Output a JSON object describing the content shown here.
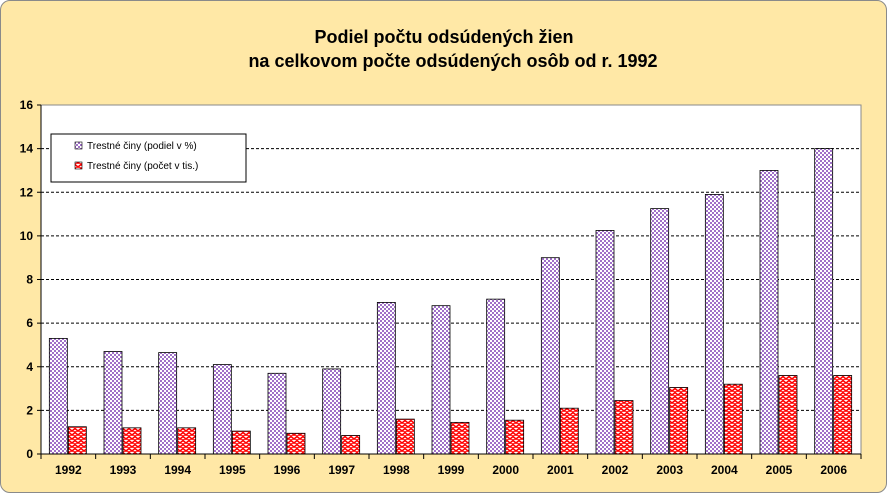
{
  "chart_data": {
    "type": "bar",
    "title": [
      "Podiel počtu odsúdených žien",
      "na celkovom počte odsúdených osôb od r. 1992"
    ],
    "categories": [
      "1992",
      "1993",
      "1994",
      "1995",
      "1996",
      "1997",
      "1998",
      "1999",
      "2000",
      "2001",
      "2002",
      "2003",
      "2004",
      "2005",
      "2006"
    ],
    "series": [
      {
        "name": "Trestné činy (podiel v %)",
        "values": [
          5.3,
          4.7,
          4.65,
          4.1,
          3.7,
          3.9,
          6.95,
          6.8,
          7.1,
          9.0,
          10.25,
          11.25,
          11.9,
          13.0,
          14.0
        ],
        "color": "#c8a0e8",
        "pattern": "checker"
      },
      {
        "name": "Trestné činy (počet v tis.)",
        "values": [
          1.25,
          1.2,
          1.2,
          1.05,
          0.95,
          0.85,
          1.6,
          1.45,
          1.55,
          2.1,
          2.45,
          3.05,
          3.2,
          3.6,
          3.6
        ],
        "color": "#ff0000",
        "pattern": "zigzag"
      }
    ],
    "ylim": [
      0,
      16
    ],
    "yticks": [
      0,
      2,
      4,
      6,
      8,
      10,
      12,
      14,
      16
    ],
    "grid": true,
    "legend_position": "top-left",
    "plot_background": "#ffffff",
    "chart_background": "#ffe8a6"
  }
}
